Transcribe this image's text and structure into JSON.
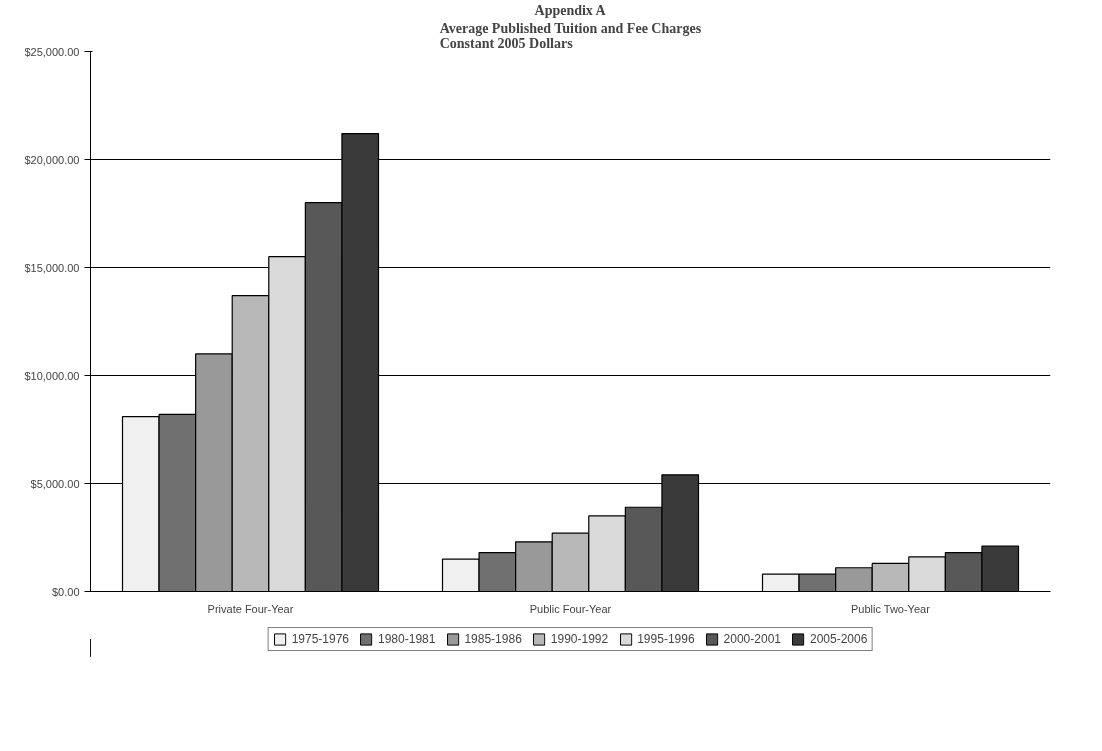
{
  "chart_data": {
    "type": "bar",
    "title": "Appendix A",
    "subtitle": "Average Published Tuition and Fee Charges\nConstant 2005 Dollars",
    "categories": [
      "Private Four-Year",
      "Public Four-Year",
      "Public Two-Year"
    ],
    "series": [
      {
        "name": "1975-1976",
        "color": "#f0f0f0",
        "values": [
          8100,
          1500,
          800
        ]
      },
      {
        "name": "1980-1981",
        "color": "#707070",
        "values": [
          8200,
          1800,
          800
        ]
      },
      {
        "name": "1985-1986",
        "color": "#999999",
        "values": [
          11000,
          2300,
          1100
        ]
      },
      {
        "name": "1990-1992",
        "color": "#b8b8b8",
        "values": [
          13700,
          2700,
          1300
        ]
      },
      {
        "name": "1995-1996",
        "color": "#dadada",
        "values": [
          15500,
          3500,
          1600
        ]
      },
      {
        "name": "2000-2001",
        "color": "#585858",
        "values": [
          18000,
          3900,
          1800
        ]
      },
      {
        "name": "2005-2006",
        "color": "#3a3a3a",
        "values": [
          21200,
          5400,
          2100
        ]
      }
    ],
    "ylim": [
      0,
      25000
    ],
    "yticks": [
      {
        "value": 0,
        "label": "$0.00"
      },
      {
        "value": 5000,
        "label": "$5,000.00"
      },
      {
        "value": 10000,
        "label": "$10,000.00"
      },
      {
        "value": 15000,
        "label": "$15,000.00"
      },
      {
        "value": 20000,
        "label": "$20,000.00"
      },
      {
        "value": 25000,
        "label": "$25,000.00"
      }
    ],
    "grid": "y",
    "legend": "bottom"
  }
}
